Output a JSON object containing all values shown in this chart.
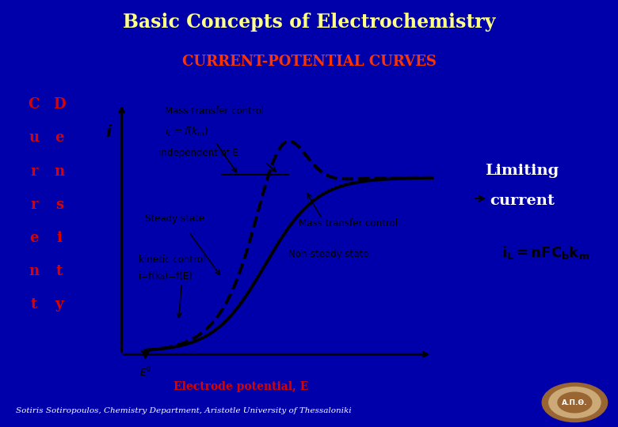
{
  "title": "Basic Concepts of Electrochemistry",
  "subtitle": "CURRENT-POTENTIAL CURVES",
  "title_bg": "#000033",
  "title_color": "#FFFF88",
  "subtitle_color": "#FF3300",
  "bg_color": "#0000AA",
  "panel_bg": "#F0F0E8",
  "left_letters": [
    "C",
    "u",
    "r",
    "r",
    "e",
    "n",
    "t"
  ],
  "right_letters": [
    "D",
    "e",
    "n",
    "s",
    "i",
    "t",
    "y"
  ],
  "axis_label_i": "i",
  "xlabel": "Electrode potential, E",
  "limiting_current_label": "Limiting\ncurrent",
  "formula_bg": "#FFFF00",
  "annotation_mass_transfer_top": "Mass transfer control",
  "annotation_iL": "iₗ=f(kₘ)",
  "annotation_indep": "independent of E",
  "annotation_steady": "Steady state",
  "annotation_mass_transfer_right": "Mass transfer control",
  "annotation_kinetic1": "kinetic control",
  "annotation_kinetic2": "i=f(k₀)=f(E)",
  "annotation_nonsteady": "Non-steady state",
  "annotation_E0": "E⁰",
  "footer": "Sotiris Sotiropoulos, Chemistry Department, Aristotle University of Thessaloniki",
  "red_color": "#DD0000",
  "yellow_color": "#FFFF00",
  "black": "#000000",
  "white": "#FFFFFF"
}
